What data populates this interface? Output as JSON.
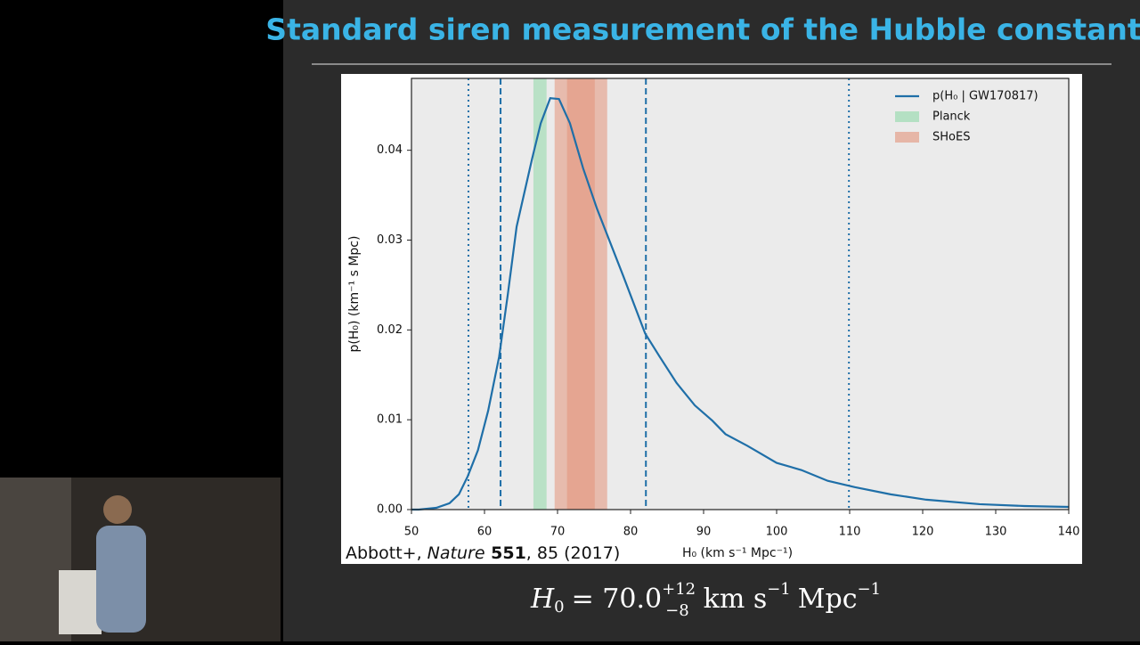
{
  "chart_data": {
    "type": "line",
    "title": "Standard siren measurement of the Hubble constant",
    "x_label": "H₀ (km s⁻¹ Mpc⁻¹)",
    "y_label": "p(H₀) (km⁻¹ s Mpc)",
    "xlim": [
      50,
      140
    ],
    "ylim": [
      0,
      0.048
    ],
    "xticks": [
      50,
      60,
      70,
      80,
      90,
      100,
      110,
      120,
      130,
      140
    ],
    "yticks": [
      {
        "value": 0,
        "label": "0.00"
      },
      0.01,
      0.02,
      0.03,
      0.04
    ],
    "legend": "upper right",
    "series": [
      {
        "name": "p(H₀ | GW170817)",
        "color": "#1f6fa8",
        "x": [
          50,
          51,
          53.4,
          55.2,
          56.5,
          57.7,
          59.1,
          60.5,
          62,
          63.2,
          64.4,
          66.5,
          67.7,
          69,
          70.2,
          71.7,
          73.5,
          75.4,
          76.6,
          79,
          82,
          84,
          86.3,
          88.8,
          91.2,
          93,
          96,
          100,
          103.4,
          107,
          110.7,
          115.6,
          120.5,
          127.8,
          133.9,
          140
        ],
        "values": [
          0,
          0,
          0.0002,
          0.0007,
          0.0017,
          0.0037,
          0.0066,
          0.011,
          0.017,
          0.024,
          0.0315,
          0.039,
          0.043,
          0.0458,
          0.0457,
          0.043,
          0.038,
          0.0335,
          0.031,
          0.026,
          0.0196,
          0.017,
          0.0141,
          0.0116,
          0.0099,
          0.0084,
          0.0071,
          0.0052,
          0.0044,
          0.0032,
          0.0025,
          0.0017,
          0.0011,
          0.0006,
          0.0004,
          0.0003
        ]
      },
      {
        "name": "Planck",
        "color": "#8fd9a8",
        "spans": [
          [
            66.7,
            68.5
          ]
        ]
      },
      {
        "name": "SHoES",
        "color": "#e3937a",
        "spans": [
          [
            69.6,
            76.8
          ],
          [
            71.3,
            75.1
          ]
        ]
      }
    ],
    "vlines": [
      {
        "x": 57.8,
        "style": "dotted"
      },
      {
        "x": 62.2,
        "style": "dashed"
      },
      {
        "x": 82.1,
        "style": "dashed"
      },
      {
        "x": 109.9,
        "style": "dotted"
      }
    ],
    "citation": [
      "Abbott+, ",
      "Nature",
      " 551",
      ", 85 (2017)"
    ],
    "equation": {
      "symbol": "H",
      "subscript": "0",
      "relation": "= 70.0",
      "upper": "+12",
      "lower": "−8",
      "units": "km s",
      "unit_power": "−1",
      "units2": "Mpc",
      "unit2_power": "−1"
    }
  }
}
